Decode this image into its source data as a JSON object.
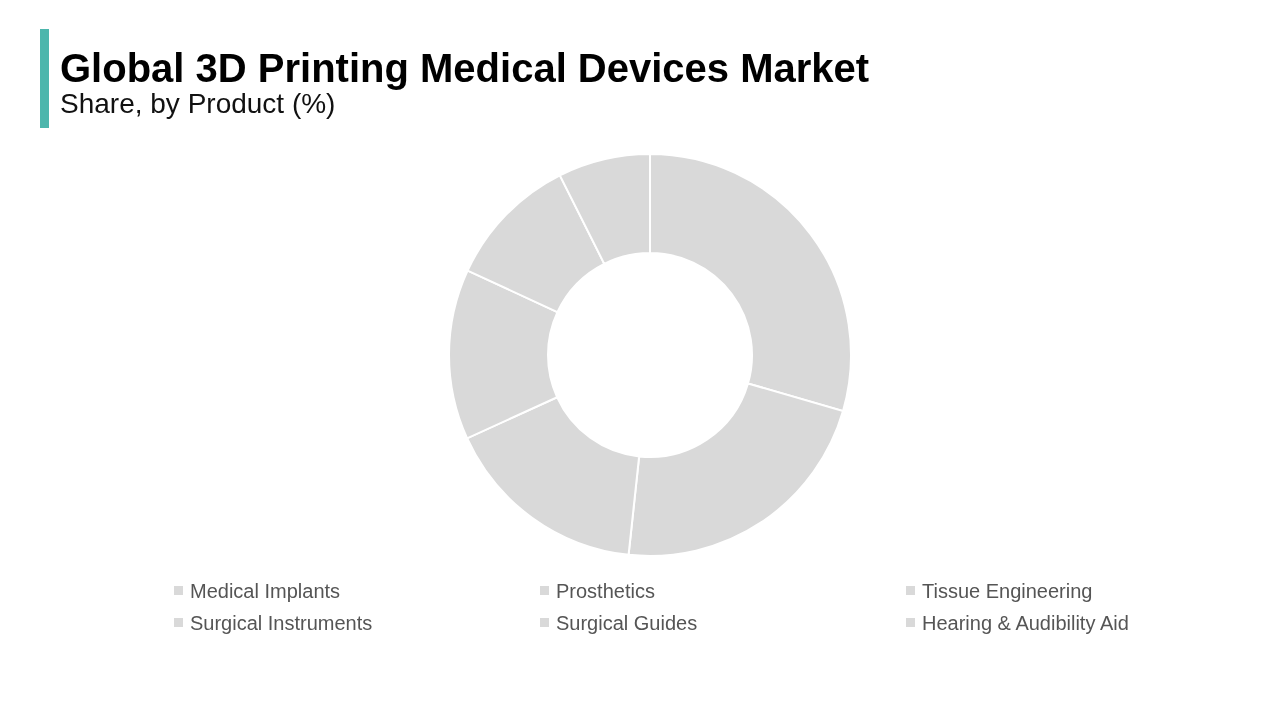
{
  "chart_data": {
    "type": "donut",
    "title": "Global 3D Printing Medical Devices Market",
    "subtitle": "Share, by Product (%)",
    "categories": [
      "Medical Implants",
      "Prosthetics",
      "Tissue Engineering",
      "Surgical Instruments",
      "Surgical Guides",
      "Hearing & Audibility Aid"
    ],
    "values": [
      29.5,
      22.2,
      16.5,
      13.7,
      10.7,
      7.4
    ],
    "colors": [
      "#d9d9d9",
      "#d9d9d9",
      "#d9d9d9",
      "#d9d9d9",
      "#d9d9d9",
      "#d9d9d9"
    ],
    "legend": "bottom"
  }
}
